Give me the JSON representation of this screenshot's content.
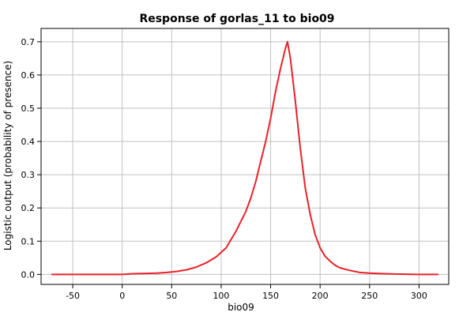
{
  "chart_data": {
    "type": "line",
    "title": "Response of gorlas_11 to bio09",
    "xlabel": "bio09",
    "ylabel": "Logistic output (probability of presence)",
    "xlim": [
      -82,
      330
    ],
    "ylim": [
      -0.03,
      0.74
    ],
    "x_ticks": [
      -50,
      0,
      50,
      100,
      150,
      200,
      250,
      300
    ],
    "x_tick_labels": [
      "-50",
      "0",
      "50",
      "100",
      "150",
      "200",
      "250",
      "300"
    ],
    "y_ticks": [
      0.0,
      0.1,
      0.2,
      0.3,
      0.4,
      0.5,
      0.6,
      0.7
    ],
    "y_tick_labels": [
      "0.0",
      "0.1",
      "0.2",
      "0.3",
      "0.4",
      "0.5",
      "0.6",
      "0.7"
    ],
    "grid": true,
    "series": [
      {
        "color": "#e8222a",
        "x": [
          -71,
          -50,
          -25,
          0,
          10,
          25,
          35,
          45,
          55,
          65,
          75,
          85,
          95,
          105,
          115,
          120,
          125,
          130,
          135,
          140,
          145,
          150,
          155,
          160,
          165,
          167,
          170,
          175,
          180,
          185,
          190,
          195,
          200,
          205,
          210,
          215,
          220,
          230,
          240,
          250,
          265,
          280,
          300,
          319
        ],
        "y": [
          0.0,
          0.0,
          0.0,
          0.0,
          0.002,
          0.003,
          0.004,
          0.006,
          0.009,
          0.014,
          0.022,
          0.035,
          0.053,
          0.08,
          0.13,
          0.16,
          0.19,
          0.23,
          0.28,
          0.34,
          0.4,
          0.47,
          0.55,
          0.62,
          0.68,
          0.7,
          0.65,
          0.52,
          0.38,
          0.26,
          0.18,
          0.12,
          0.08,
          0.055,
          0.04,
          0.028,
          0.02,
          0.012,
          0.006,
          0.004,
          0.002,
          0.001,
          0.0,
          0.0
        ]
      }
    ]
  }
}
